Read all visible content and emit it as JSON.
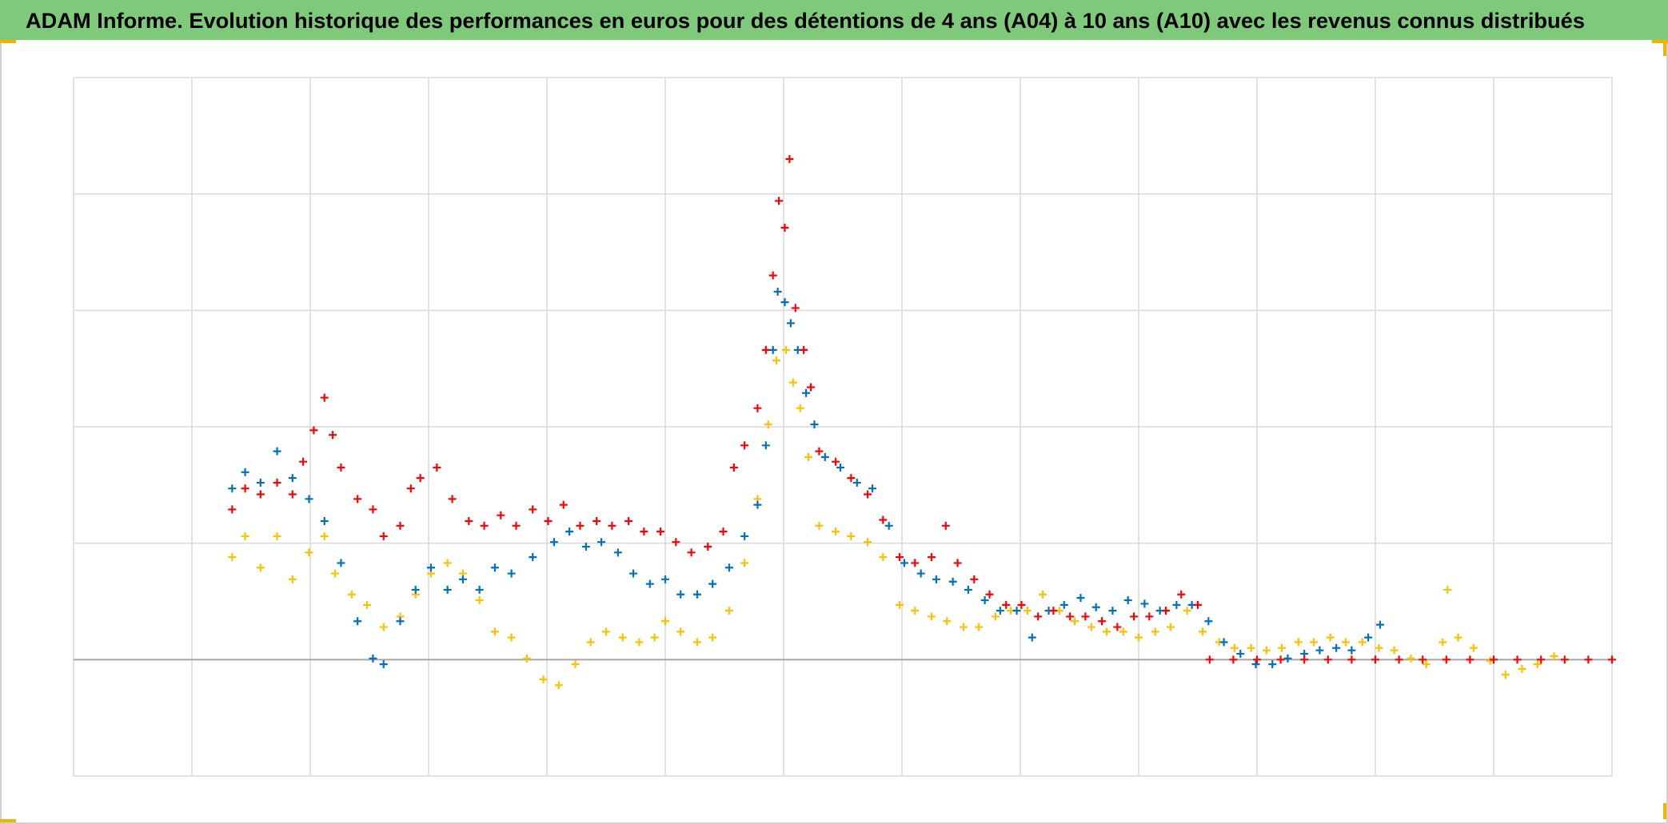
{
  "chart_data": {
    "type": "scatter",
    "title": "ADAM Informe. Evolution historique des performances en euros pour des détentions de 4 ans (A04) à 10 ans (A10) avec les revenus connus distribués",
    "xlim": [
      0,
      13
    ],
    "xticks": [
      0,
      1,
      2,
      3,
      4,
      5,
      6,
      7,
      8,
      9,
      10,
      11,
      12,
      13
    ],
    "ylim": [
      -1,
      5
    ],
    "yticks": [
      -1,
      0,
      1,
      2,
      3,
      4,
      5
    ],
    "grid": true,
    "series": [
      {
        "color": "#ffc000",
        "x": [
          1.34,
          1.45,
          1.58,
          1.72,
          1.85,
          1.99,
          2.12,
          2.21,
          2.35,
          2.48,
          2.62,
          2.76,
          2.89,
          3.02,
          3.16,
          3.29,
          3.43,
          3.56,
          3.7,
          3.83,
          3.97,
          4.1,
          4.24,
          4.37,
          4.5,
          4.64,
          4.78,
          4.91,
          5.0,
          5.13,
          5.27,
          5.4,
          5.54,
          5.67,
          5.78,
          5.87,
          5.94,
          6.02,
          6.08,
          6.14,
          6.21,
          6.3,
          6.44,
          6.57,
          6.71,
          6.84,
          6.98,
          7.11,
          7.25,
          7.38,
          7.52,
          7.65,
          7.79,
          7.92,
          8.06,
          8.19,
          8.33,
          8.46,
          8.6,
          8.73,
          8.87,
          9.0,
          9.14,
          9.27,
          9.41,
          9.54,
          9.68,
          9.81,
          9.95,
          10.08,
          10.21,
          10.35,
          10.48,
          10.62,
          10.75,
          10.89,
          11.03,
          11.16,
          11.3,
          11.43,
          11.57,
          11.61,
          11.7,
          11.83,
          11.97,
          12.1,
          12.24,
          12.37,
          12.51
        ],
        "values": [
          0.88,
          1.06,
          0.79,
          1.06,
          0.69,
          0.92,
          1.06,
          0.74,
          0.56,
          0.47,
          0.28,
          0.37,
          0.56,
          0.74,
          0.83,
          0.74,
          0.51,
          0.24,
          0.19,
          0.01,
          -0.17,
          -0.22,
          -0.04,
          0.15,
          0.24,
          0.19,
          0.15,
          0.19,
          0.33,
          0.24,
          0.15,
          0.19,
          0.42,
          0.83,
          1.38,
          2.02,
          2.57,
          2.66,
          2.38,
          2.16,
          1.74,
          1.15,
          1.1,
          1.06,
          1.01,
          0.88,
          0.47,
          0.42,
          0.37,
          0.33,
          0.28,
          0.28,
          0.37,
          0.42,
          0.42,
          0.56,
          0.42,
          0.33,
          0.28,
          0.24,
          0.24,
          0.19,
          0.24,
          0.28,
          0.42,
          0.24,
          0.15,
          0.1,
          0.1,
          0.08,
          0.1,
          0.15,
          0.15,
          0.19,
          0.15,
          0.15,
          0.1,
          0.08,
          0.01,
          -0.04,
          0.15,
          0.6,
          0.19,
          0.1,
          -0.01,
          -0.13,
          -0.08,
          -0.04,
          0.03
        ]
      },
      {
        "color": "#0070c0",
        "x": [
          1.34,
          1.45,
          1.58,
          1.72,
          1.85,
          1.99,
          2.12,
          2.26,
          2.4,
          2.53,
          2.62,
          2.76,
          2.89,
          3.02,
          3.16,
          3.29,
          3.43,
          3.56,
          3.7,
          3.88,
          4.06,
          4.19,
          4.33,
          4.46,
          4.6,
          4.73,
          4.87,
          5.0,
          5.13,
          5.27,
          5.4,
          5.54,
          5.67,
          5.78,
          5.85,
          5.91,
          5.95,
          6.01,
          6.06,
          6.12,
          6.19,
          6.26,
          6.35,
          6.48,
          6.62,
          6.75,
          6.89,
          7.02,
          7.16,
          7.29,
          7.43,
          7.56,
          7.7,
          7.83,
          7.97,
          8.1,
          8.24,
          8.37,
          8.51,
          8.64,
          8.78,
          8.91,
          9.05,
          9.18,
          9.32,
          9.45,
          9.59,
          9.72,
          9.86,
          9.99,
          10.13,
          10.26,
          10.4,
          10.53,
          10.67,
          10.8,
          10.94,
          11.04
        ],
        "values": [
          1.47,
          1.61,
          1.52,
          1.79,
          1.56,
          1.38,
          1.19,
          0.83,
          0.33,
          0.01,
          -0.04,
          0.33,
          0.6,
          0.79,
          0.6,
          0.69,
          0.6,
          0.79,
          0.74,
          0.88,
          1.01,
          1.1,
          0.97,
          1.01,
          0.92,
          0.74,
          0.65,
          0.69,
          0.56,
          0.56,
          0.65,
          0.79,
          1.06,
          1.33,
          1.84,
          2.66,
          3.16,
          3.07,
          2.89,
          2.66,
          2.29,
          2.02,
          1.74,
          1.65,
          1.52,
          1.47,
          1.15,
          0.83,
          0.74,
          0.69,
          0.67,
          0.6,
          0.51,
          0.42,
          0.42,
          0.19,
          0.42,
          0.47,
          0.53,
          0.45,
          0.42,
          0.51,
          0.48,
          0.42,
          0.47,
          0.47,
          0.33,
          0.15,
          0.05,
          -0.04,
          -0.04,
          0.01,
          0.05,
          0.08,
          0.1,
          0.08,
          0.19,
          0.3
        ]
      },
      {
        "color": "#ff0000",
        "x": [
          1.34,
          1.45,
          1.58,
          1.72,
          1.85,
          1.94,
          2.03,
          2.12,
          2.19,
          2.26,
          2.4,
          2.53,
          2.62,
          2.76,
          2.85,
          2.93,
          3.07,
          3.2,
          3.34,
          3.47,
          3.61,
          3.74,
          3.88,
          4.01,
          4.14,
          4.28,
          4.42,
          4.55,
          4.69,
          4.82,
          4.96,
          5.09,
          5.22,
          5.36,
          5.49,
          5.58,
          5.67,
          5.78,
          5.85,
          5.91,
          5.96,
          6.01,
          6.05,
          6.1,
          6.17,
          6.23,
          6.3,
          6.44,
          6.57,
          6.71,
          6.84,
          6.98,
          7.11,
          7.25,
          7.37,
          7.47,
          7.61,
          7.74,
          7.88,
          8.01,
          8.15,
          8.28,
          8.42,
          8.55,
          8.69,
          8.82,
          8.96,
          9.09,
          9.23,
          9.36,
          9.5,
          9.6,
          9.8,
          10.0,
          10.2,
          10.4,
          10.6,
          10.8,
          11.0,
          11.2,
          11.4,
          11.6,
          11.8,
          12.0,
          12.2,
          12.4,
          12.6,
          12.8,
          13.0
        ],
        "values": [
          1.29,
          1.47,
          1.42,
          1.52,
          1.42,
          1.7,
          1.97,
          2.25,
          1.93,
          1.65,
          1.38,
          1.29,
          1.06,
          1.15,
          1.47,
          1.56,
          1.65,
          1.38,
          1.19,
          1.15,
          1.24,
          1.15,
          1.29,
          1.19,
          1.33,
          1.15,
          1.19,
          1.15,
          1.19,
          1.1,
          1.1,
          1.01,
          0.92,
          0.97,
          1.1,
          1.65,
          1.84,
          2.16,
          2.66,
          3.3,
          3.94,
          3.71,
          4.3,
          3.02,
          2.66,
          2.34,
          1.79,
          1.7,
          1.56,
          1.42,
          1.2,
          0.88,
          0.83,
          0.88,
          1.15,
          0.83,
          0.69,
          0.56,
          0.47,
          0.47,
          0.37,
          0.42,
          0.37,
          0.37,
          0.33,
          0.28,
          0.37,
          0.37,
          0.42,
          0.56,
          0.47,
          0,
          0,
          0,
          0,
          0,
          0,
          0,
          0,
          0,
          0,
          0,
          0,
          0,
          0,
          0,
          0,
          0,
          0
        ]
      }
    ]
  }
}
